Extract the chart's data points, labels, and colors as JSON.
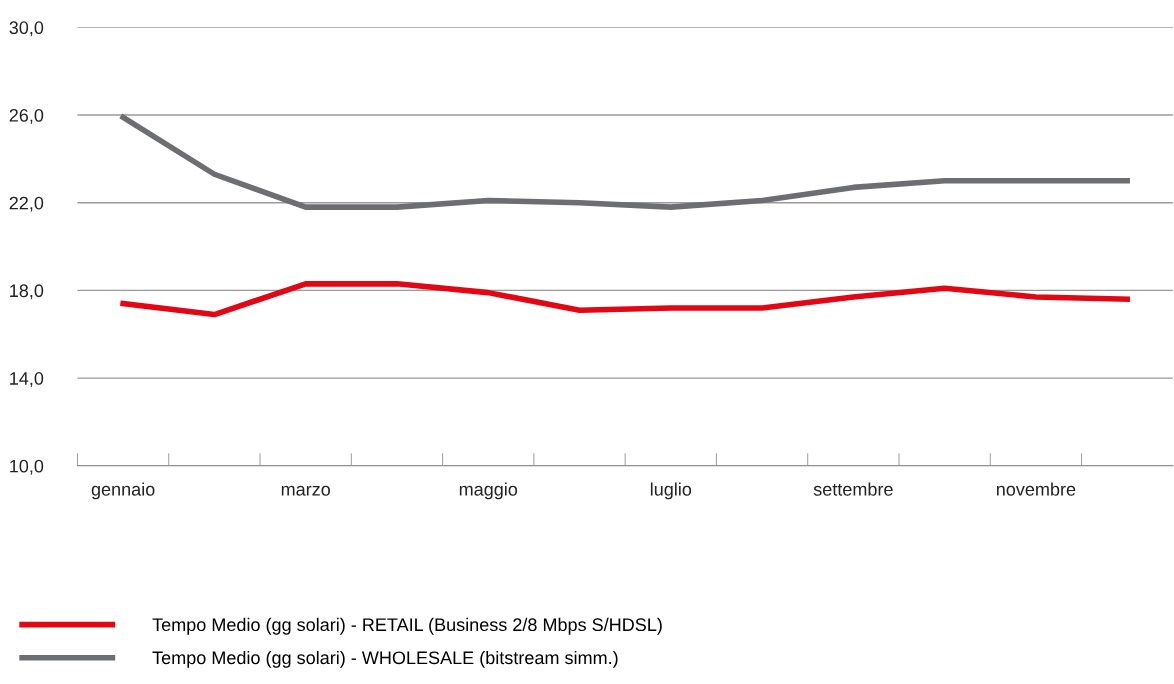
{
  "chart_data": {
    "type": "line",
    "categories": [
      "gennaio",
      null,
      "marzo",
      null,
      "maggio",
      null,
      "luglio",
      null,
      "settembre",
      null,
      "novembre",
      null
    ],
    "series": [
      {
        "name": "Tempo Medio (gg solari) - RETAIL (Business 2/8 Mbps S/HDSL)",
        "color": "#e30613",
        "values": [
          17.4,
          16.9,
          18.3,
          18.3,
          17.9,
          17.1,
          17.2,
          17.2,
          17.7,
          18.1,
          17.7,
          17.6
        ]
      },
      {
        "name": "Tempo Medio (gg solari) - WHOLESALE (bitstream simm.)",
        "color": "#6d6e71",
        "values": [
          25.9,
          23.3,
          21.8,
          21.8,
          22.1,
          22.0,
          21.8,
          22.1,
          22.7,
          23.0,
          23.0,
          23.0
        ]
      }
    ],
    "ylim": [
      10,
      30
    ],
    "yticks": [
      {
        "value": 10,
        "label": "10,0"
      },
      {
        "value": 14,
        "label": "14,0"
      },
      {
        "value": 18,
        "label": "18,0"
      },
      {
        "value": 22,
        "label": "22,0"
      },
      {
        "value": 26,
        "label": "26,0"
      },
      {
        "value": 30,
        "label": "30,0"
      }
    ],
    "grid": "y",
    "legend": "bottom",
    "marker": "none",
    "line_style": "solid"
  }
}
